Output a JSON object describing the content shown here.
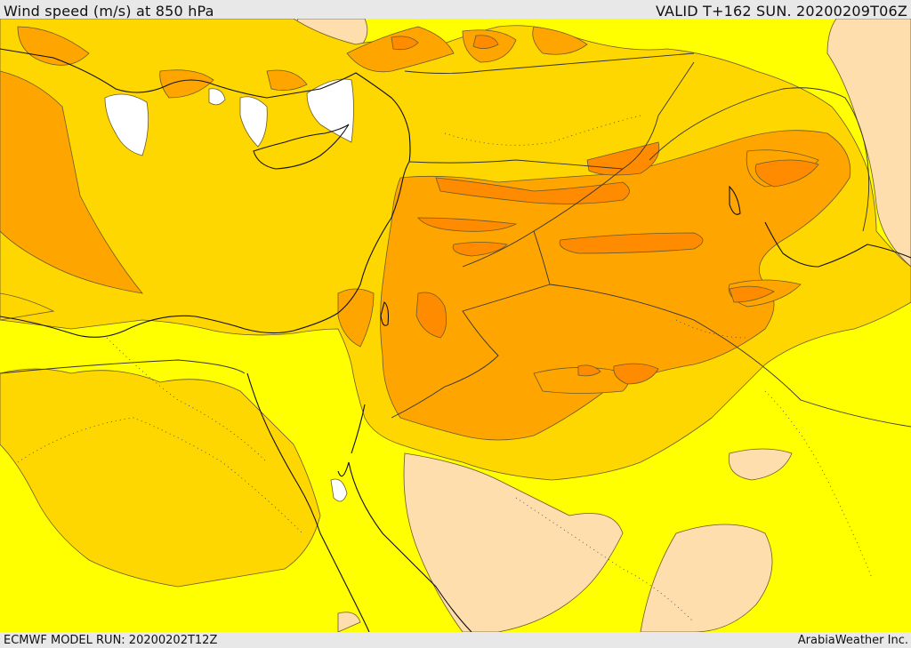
{
  "header": {
    "title": "Wind speed (m/s) at 850 hPa",
    "valid": "VALID T+162 SUN. 20200209T06Z"
  },
  "footer": {
    "model_run": "ECMWF MODEL RUN: 20200202T12Z",
    "credit": "ArabiaWeather Inc."
  },
  "map": {
    "field": "wind speed 850 hPa",
    "palette": [
      "#ffffff",
      "#ffdead",
      "#ffff00",
      "#ffd700",
      "#ffa500",
      "#ff8c00"
    ],
    "line_color": "#111111"
  }
}
